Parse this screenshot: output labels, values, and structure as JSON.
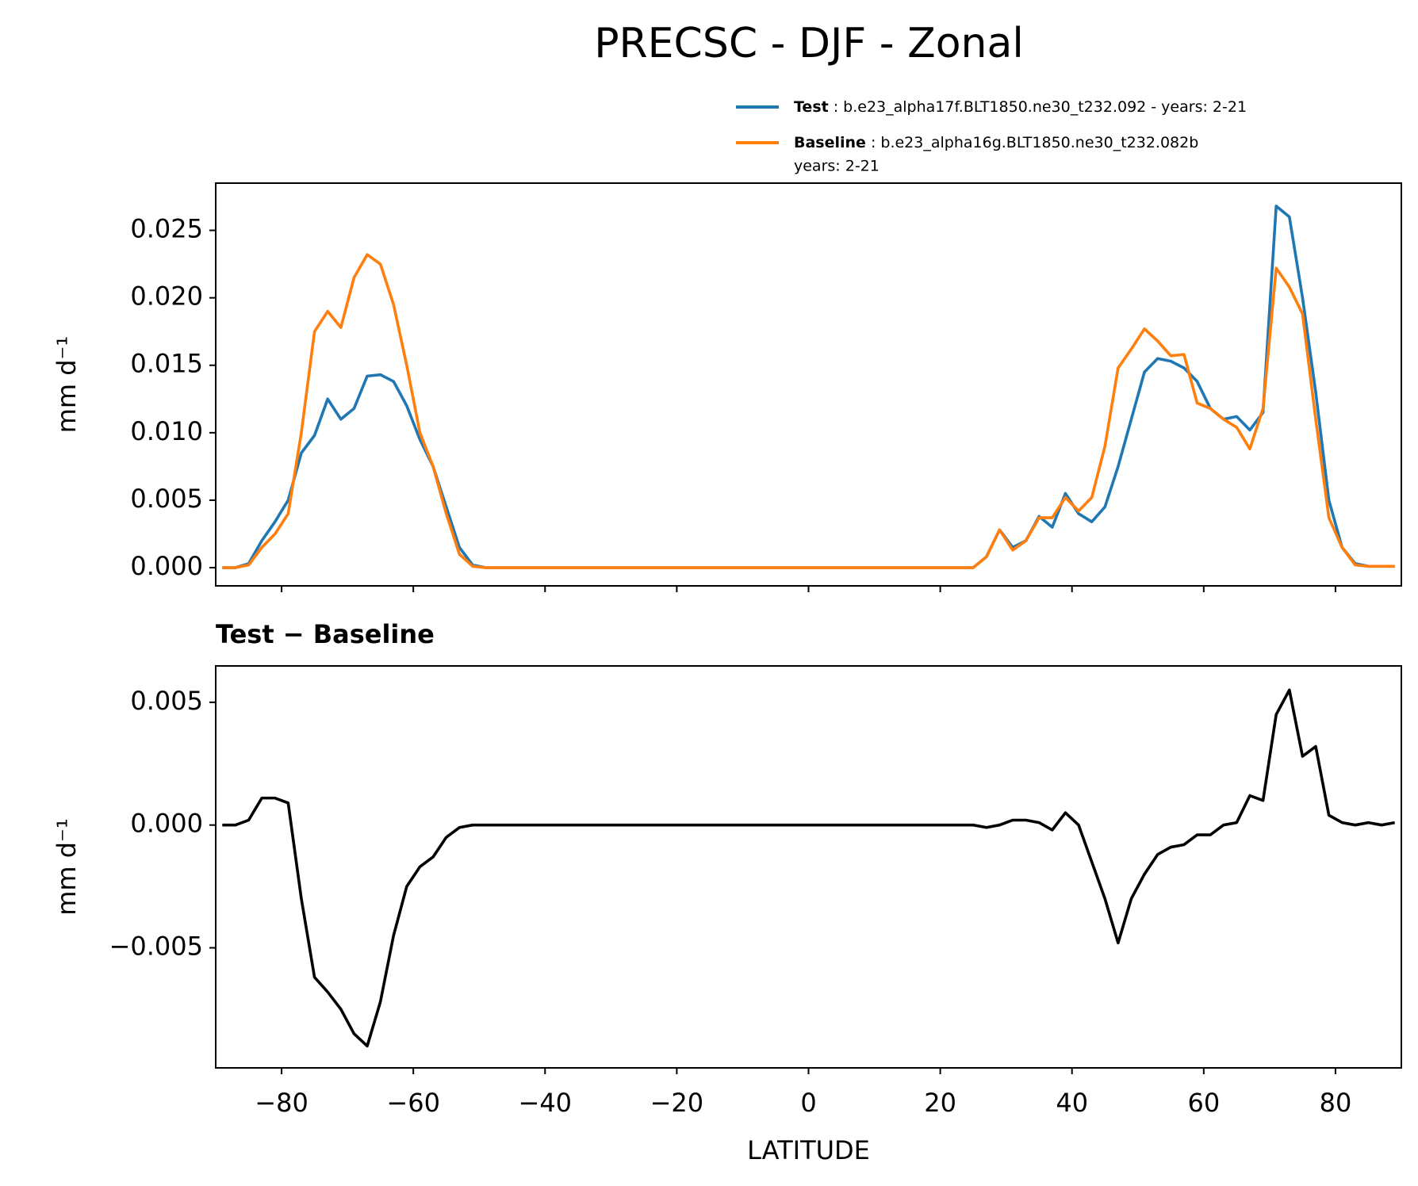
{
  "title": "PRECSC - DJF - Zonal",
  "chart_data": [
    {
      "type": "line",
      "ylabel": "mm d⁻¹",
      "xlim": [
        -90,
        90
      ],
      "xticks": [
        {
          "value": -80,
          "label": "−80"
        },
        {
          "value": -60,
          "label": "−60"
        },
        {
          "value": -40,
          "label": "−40"
        },
        {
          "value": -20,
          "label": "−20"
        },
        0,
        20,
        40,
        60,
        80
      ],
      "ylim": [
        -0.00135,
        0.0285
      ],
      "yticks": [
        {
          "value": 0,
          "label": "0.000"
        },
        {
          "value": 0.005,
          "label": "0.005"
        },
        {
          "value": 0.01,
          "label": "0.010"
        },
        {
          "value": 0.015,
          "label": "0.015"
        },
        {
          "value": 0.02,
          "label": "0.020"
        },
        {
          "value": 0.025,
          "label": "0.025"
        }
      ],
      "x": [
        -89,
        -87,
        -85,
        -83,
        -81,
        -79,
        -77,
        -75,
        -73,
        -71,
        -69,
        -67,
        -65,
        -63,
        -61,
        -59,
        -57,
        -55,
        -53,
        -51,
        -49,
        -47,
        -45,
        -43,
        -41,
        -39,
        -37,
        -35,
        -33,
        -31,
        -29,
        -27,
        -25,
        -23,
        -21,
        -19,
        -17,
        -15,
        -13,
        -11,
        -9,
        -7,
        -5,
        -3,
        -1,
        1,
        3,
        5,
        7,
        9,
        11,
        13,
        15,
        17,
        19,
        21,
        23,
        25,
        27,
        29,
        31,
        33,
        35,
        37,
        39,
        41,
        43,
        45,
        47,
        49,
        51,
        53,
        55,
        57,
        59,
        61,
        63,
        65,
        67,
        69,
        71,
        73,
        75,
        77,
        79,
        81,
        83,
        85,
        87,
        89
      ],
      "series": [
        {
          "name": "Test",
          "case": [
            ": b.e23_alpha17f.BLT1850.ne30_t232.092 - years: 2-21"
          ],
          "color": "#1f77b4",
          "values": [
            0,
            0,
            0.0003,
            0.002,
            0.0034,
            0.005,
            0.0085,
            0.0098,
            0.0125,
            0.011,
            0.0118,
            0.0142,
            0.0143,
            0.0138,
            0.012,
            0.0095,
            0.0075,
            0.0045,
            0.0015,
            0.0002,
            0,
            0,
            0,
            0,
            0,
            0,
            0,
            0,
            0,
            0,
            0,
            0,
            0,
            0,
            0,
            0,
            0,
            0,
            0,
            0,
            0,
            0,
            0,
            0,
            0,
            0,
            0,
            0,
            0,
            0,
            0,
            0,
            0,
            0,
            0,
            0,
            0,
            0,
            0.0008,
            0.0028,
            0.0015,
            0.002,
            0.0038,
            0.003,
            0.0055,
            0.004,
            0.0034,
            0.0045,
            0.0075,
            0.011,
            0.0145,
            0.0155,
            0.0153,
            0.0148,
            0.0138,
            0.0118,
            0.011,
            0.0112,
            0.0102,
            0.0115,
            0.0268,
            0.026,
            0.02,
            0.013,
            0.005,
            0.0015,
            0.0003,
            0.0001,
            0.0001,
            0.0001
          ]
        },
        {
          "name": "Baseline",
          "case": [
            ": b.e23_alpha16g.BLT1850.ne30_t232.082b",
            "years: 2-21"
          ],
          "color": "#ff7f0e",
          "values": [
            0,
            0,
            0.0002,
            0.0015,
            0.0025,
            0.004,
            0.01,
            0.0175,
            0.019,
            0.0178,
            0.0215,
            0.0232,
            0.0225,
            0.0195,
            0.015,
            0.01,
            0.0075,
            0.004,
            0.001,
            0.0001,
            0,
            0,
            0,
            0,
            0,
            0,
            0,
            0,
            0,
            0,
            0,
            0,
            0,
            0,
            0,
            0,
            0,
            0,
            0,
            0,
            0,
            0,
            0,
            0,
            0,
            0,
            0,
            0,
            0,
            0,
            0,
            0,
            0,
            0,
            0,
            0,
            0,
            0,
            0.0008,
            0.0028,
            0.0013,
            0.002,
            0.0037,
            0.0037,
            0.0052,
            0.0042,
            0.0052,
            0.009,
            0.0148,
            0.0162,
            0.0177,
            0.0168,
            0.0157,
            0.0158,
            0.0122,
            0.0118,
            0.011,
            0.0104,
            0.0088,
            0.0118,
            0.0222,
            0.0208,
            0.0188,
            0.011,
            0.0037,
            0.0015,
            0.0002,
            0.0001,
            0.0001,
            0.0001
          ]
        }
      ]
    },
    {
      "type": "line",
      "title": "Test − Baseline",
      "xlabel": "LATITUDE",
      "ylabel": "mm d⁻¹",
      "xlim": [
        -90,
        90
      ],
      "xticks": [
        {
          "value": -80,
          "label": "−80"
        },
        {
          "value": -60,
          "label": "−60"
        },
        {
          "value": -40,
          "label": "−40"
        },
        {
          "value": -20,
          "label": "−20"
        },
        0,
        20,
        40,
        60,
        80
      ],
      "ylim": [
        -0.00989,
        0.00648
      ],
      "yticks": [
        {
          "value": -0.005,
          "label": "−0.005"
        },
        {
          "value": 0,
          "label": "0.000"
        },
        {
          "value": 0.005,
          "label": "0.005"
        }
      ],
      "x": [
        -89,
        -87,
        -85,
        -83,
        -81,
        -79,
        -77,
        -75,
        -73,
        -71,
        -69,
        -67,
        -65,
        -63,
        -61,
        -59,
        -57,
        -55,
        -53,
        -51,
        -49,
        -47,
        -45,
        -43,
        -41,
        -39,
        -37,
        -35,
        -33,
        -31,
        -29,
        -27,
        -25,
        -23,
        -21,
        -19,
        -17,
        -15,
        -13,
        -11,
        -9,
        -7,
        -5,
        -3,
        -1,
        1,
        3,
        5,
        7,
        9,
        11,
        13,
        15,
        17,
        19,
        21,
        23,
        25,
        27,
        29,
        31,
        33,
        35,
        37,
        39,
        41,
        43,
        45,
        47,
        49,
        51,
        53,
        55,
        57,
        59,
        61,
        63,
        65,
        67,
        69,
        71,
        73,
        75,
        77,
        79,
        81,
        83,
        85,
        87,
        89
      ],
      "series": [
        {
          "color": "#000000",
          "values": [
            0,
            0,
            0.0002,
            0.0011,
            0.0011,
            0.0009,
            -0.003,
            -0.0062,
            -0.0068,
            -0.0075,
            -0.0085,
            -0.009,
            -0.0072,
            -0.0045,
            -0.0025,
            -0.0017,
            -0.0013,
            -0.0005,
            -0.0001,
            0,
            0,
            0,
            0,
            0,
            0,
            0,
            0,
            0,
            0,
            0,
            0,
            0,
            0,
            0,
            0,
            0,
            0,
            0,
            0,
            0,
            0,
            0,
            0,
            0,
            0,
            0,
            0,
            0,
            0,
            0,
            0,
            0,
            0,
            0,
            0,
            0,
            0,
            0,
            -0.0001,
            0,
            0.0002,
            0.0002,
            0.0001,
            -0.0002,
            0.0005,
            0,
            -0.0015,
            -0.003,
            -0.0048,
            -0.003,
            -0.002,
            -0.0012,
            -0.0009,
            -0.0008,
            -0.0004,
            -0.0004,
            0,
            0.0001,
            0.0012,
            0.001,
            0.0045,
            0.0055,
            0.0028,
            0.0032,
            0.0004,
            0.0001,
            0,
            0.0001,
            0,
            0.0001
          ]
        }
      ]
    }
  ]
}
